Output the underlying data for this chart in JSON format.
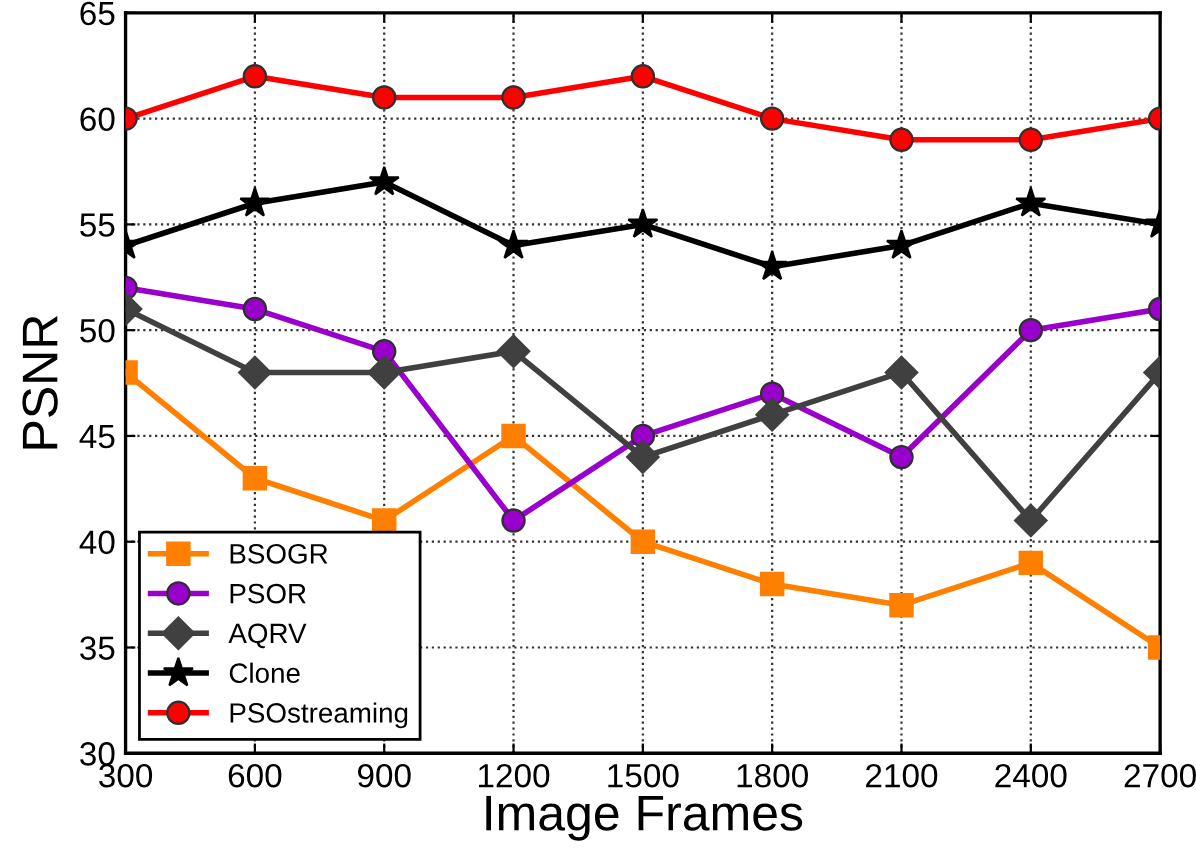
{
  "chart_data": {
    "type": "line",
    "xlabel": "Image Frames",
    "ylabel": "PSNR",
    "x": [
      300,
      600,
      900,
      1200,
      1500,
      1800,
      2100,
      2400,
      2700
    ],
    "xlim": [
      300,
      2700
    ],
    "xticks": [
      300,
      600,
      900,
      1200,
      1500,
      1800,
      2100,
      2400,
      2700
    ],
    "ylim": [
      30,
      65
    ],
    "yticks": [
      30,
      35,
      40,
      45,
      50,
      55,
      60,
      65
    ],
    "grid": true,
    "legend": "bottom left",
    "line_style": "solid",
    "series": [
      {
        "name": "BSOGR",
        "color": "#ff8000",
        "marker": "square",
        "values": [
          48,
          43,
          41,
          45,
          40,
          38,
          37,
          39,
          35
        ]
      },
      {
        "name": "PSOR",
        "color": "#9900cc",
        "marker": "circle",
        "values": [
          52,
          51,
          49,
          41,
          45,
          47,
          44,
          50,
          51
        ]
      },
      {
        "name": "AQRV",
        "color": "#404040",
        "marker": "diamond",
        "values": [
          51,
          48,
          48,
          49,
          44,
          46,
          48,
          41,
          48
        ]
      },
      {
        "name": "Clone",
        "color": "#000000",
        "marker": "star",
        "values": [
          54,
          56,
          57,
          54,
          55,
          53,
          54,
          56,
          55
        ]
      },
      {
        "name": "PSOstreaming",
        "color": "#ff0000",
        "marker": "circle",
        "values": [
          60,
          62,
          61,
          61,
          62,
          60,
          59,
          59,
          60
        ]
      }
    ]
  }
}
